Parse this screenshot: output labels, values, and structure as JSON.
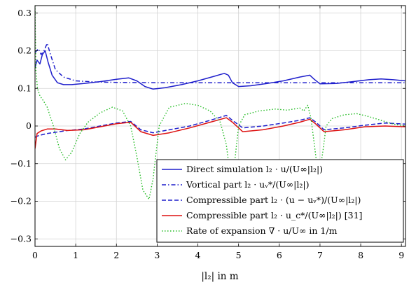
{
  "chart_data": {
    "type": "line",
    "xlabel": "|l₂| in m",
    "xlim": [
      0,
      9.1
    ],
    "ylim": [
      -0.32,
      0.32
    ],
    "xticks": [
      0,
      1,
      2,
      3,
      4,
      5,
      6,
      7,
      8,
      9
    ],
    "yticks": [
      -0.3,
      -0.2,
      -0.1,
      0,
      0.1,
      0.2,
      0.3
    ],
    "xtick_labels": [
      "0",
      "1",
      "2",
      "3",
      "4",
      "5",
      "6",
      "7",
      "8",
      "9"
    ],
    "ytick_labels": [
      "−0.3",
      "−0.2",
      "−0.1",
      "0",
      "0.1",
      "0.2",
      "0.3"
    ],
    "grid": true,
    "legend_position": "bottom-right",
    "series": [
      {
        "name": "Direct simulation l₂ · u/(U∞|l₂|)",
        "color": "#1f1fcc",
        "style": "solid",
        "x": [
          0,
          0.05,
          0.12,
          0.18,
          0.25,
          0.32,
          0.42,
          0.55,
          0.7,
          0.9,
          1.2,
          1.6,
          2.0,
          2.3,
          2.5,
          2.7,
          2.9,
          3.2,
          3.6,
          4.0,
          4.4,
          4.65,
          4.75,
          4.85,
          5.0,
          5.3,
          5.7,
          6.1,
          6.5,
          6.75,
          6.85,
          7.0,
          7.4,
          7.8,
          8.2,
          8.5,
          8.8,
          9.1
        ],
        "y": [
          0.155,
          0.175,
          0.165,
          0.19,
          0.2,
          0.17,
          0.135,
          0.115,
          0.11,
          0.11,
          0.113,
          0.118,
          0.124,
          0.128,
          0.12,
          0.105,
          0.098,
          0.102,
          0.11,
          0.12,
          0.132,
          0.14,
          0.135,
          0.115,
          0.105,
          0.107,
          0.113,
          0.12,
          0.13,
          0.135,
          0.125,
          0.112,
          0.113,
          0.118,
          0.123,
          0.125,
          0.123,
          0.12
        ]
      },
      {
        "name": "Vortical part l₂ · uᵥ*/(U∞|l₂|)",
        "color": "#1f1fcc",
        "style": "dashdot",
        "x": [
          0,
          0.08,
          0.15,
          0.22,
          0.3,
          0.38,
          0.5,
          0.7,
          1.0,
          1.5,
          2.0,
          3.0,
          4.0,
          5.0,
          6.0,
          7.0,
          8.0,
          9.1
        ],
        "y": [
          0.195,
          0.205,
          0.19,
          0.2,
          0.22,
          0.19,
          0.15,
          0.13,
          0.12,
          0.117,
          0.116,
          0.115,
          0.115,
          0.115,
          0.115,
          0.115,
          0.115,
          0.115
        ]
      },
      {
        "name": "Compressible part l₂ · (u − uᵥ*)/(U∞|l₂|)",
        "color": "#1f1fcc",
        "style": "dashed",
        "x": [
          0,
          0.1,
          0.3,
          0.6,
          0.8,
          1.2,
          1.6,
          2.0,
          2.35,
          2.6,
          2.9,
          3.3,
          3.8,
          4.3,
          4.7,
          4.85,
          5.1,
          5.6,
          6.1,
          6.5,
          6.75,
          6.9,
          7.1,
          7.6,
          8.1,
          8.6,
          9.1
        ],
        "y": [
          -0.03,
          -0.025,
          -0.02,
          -0.015,
          -0.012,
          -0.008,
          0.0,
          0.008,
          0.012,
          -0.01,
          -0.018,
          -0.01,
          0.0,
          0.015,
          0.028,
          0.015,
          -0.005,
          0.0,
          0.008,
          0.015,
          0.022,
          0.01,
          -0.01,
          -0.005,
          0.002,
          0.008,
          0.005
        ]
      },
      {
        "name": "Compressible part l₂ · u_c*/(U∞|l₂|) [31]",
        "color": "#dd1111",
        "style": "solid",
        "x": [
          0,
          0.05,
          0.15,
          0.3,
          0.5,
          0.8,
          1.2,
          1.6,
          2.0,
          2.35,
          2.6,
          2.9,
          3.3,
          3.8,
          4.3,
          4.7,
          4.85,
          5.1,
          5.6,
          6.1,
          6.5,
          6.75,
          6.9,
          7.1,
          7.6,
          8.1,
          8.6,
          9.1
        ],
        "y": [
          -0.06,
          -0.02,
          -0.013,
          -0.008,
          -0.008,
          -0.012,
          -0.01,
          -0.002,
          0.006,
          0.01,
          -0.015,
          -0.025,
          -0.018,
          -0.005,
          0.01,
          0.022,
          0.01,
          -0.015,
          -0.01,
          0.0,
          0.01,
          0.018,
          0.005,
          -0.015,
          -0.01,
          -0.002,
          0.0,
          -0.002
        ]
      },
      {
        "name": "Rate of expansion ∇ · u/U∞ in 1/m",
        "color": "#22bb22",
        "style": "dotted",
        "x": [
          0,
          0.02,
          0.06,
          0.12,
          0.2,
          0.3,
          0.45,
          0.6,
          0.75,
          0.9,
          1.1,
          1.3,
          1.6,
          1.9,
          2.15,
          2.35,
          2.5,
          2.65,
          2.8,
          2.9,
          3.05,
          3.3,
          3.7,
          4.0,
          4.3,
          4.55,
          4.7,
          4.78,
          4.85,
          4.92,
          5.0,
          5.15,
          5.5,
          5.9,
          6.2,
          6.5,
          6.6,
          6.7,
          6.78,
          6.85,
          6.92,
          7.0,
          7.08,
          7.15,
          7.3,
          7.6,
          7.9,
          8.2,
          8.5,
          8.8,
          9.1
        ],
        "y": [
          0.32,
          0.15,
          0.1,
          0.08,
          0.068,
          0.05,
          0.0,
          -0.06,
          -0.09,
          -0.07,
          -0.02,
          0.01,
          0.035,
          0.05,
          0.04,
          0.0,
          -0.08,
          -0.17,
          -0.195,
          -0.14,
          0.0,
          0.05,
          0.06,
          0.055,
          0.04,
          0.01,
          -0.05,
          -0.12,
          -0.15,
          -0.08,
          0.0,
          0.03,
          0.04,
          0.045,
          0.042,
          0.048,
          0.04,
          0.055,
          0.02,
          -0.04,
          -0.1,
          -0.12,
          -0.06,
          0.0,
          0.02,
          0.03,
          0.033,
          0.025,
          0.015,
          0.005,
          0.0
        ]
      }
    ]
  }
}
